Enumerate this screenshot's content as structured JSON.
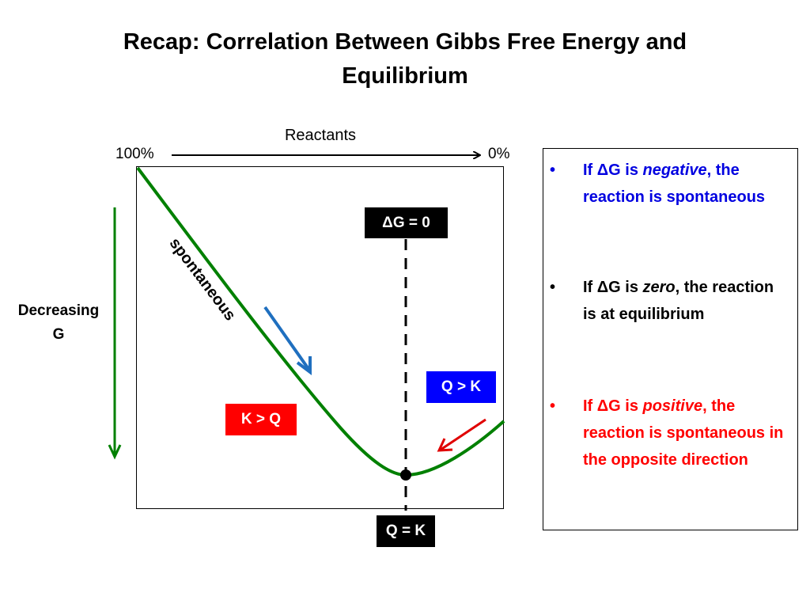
{
  "title": {
    "line1": "Recap:  Correlation Between Gibbs Free Energy and",
    "line2": "Equilibrium"
  },
  "diagram": {
    "x_axis_title": "Reactants",
    "x_start_label": "100%",
    "x_end_label": "0%",
    "y_label_line1": "Decreasing",
    "y_label_line2": "G",
    "spontaneous_label": "spontaneous",
    "delta_g_zero_label": "ΔG = 0",
    "q_equals_k_label": "Q = K",
    "k_greater_q_label": "K > Q",
    "q_greater_k_label": "Q > K",
    "colors": {
      "curve": "#008000",
      "y_arrow": "#008000",
      "left_arrow": "#1f6fbf",
      "right_arrow": "#e00000",
      "k_greater_q_box": "#ff0000",
      "q_greater_k_box": "#0000ff"
    }
  },
  "info": {
    "bullet_glyph": "•",
    "items": [
      {
        "prefix": "If ΔG is ",
        "emph": "negative",
        "suffix": ", the reaction is spontaneous",
        "color": "#0000e0"
      },
      {
        "prefix": "If ΔG is ",
        "emph": "zero",
        "suffix": ", the reaction is at equilibrium",
        "color": "#000000"
      },
      {
        "prefix": "If ΔG is ",
        "emph": "positive",
        "suffix": ", the reaction is spontaneous in the opposite direction",
        "color": "#ff0000"
      }
    ]
  }
}
